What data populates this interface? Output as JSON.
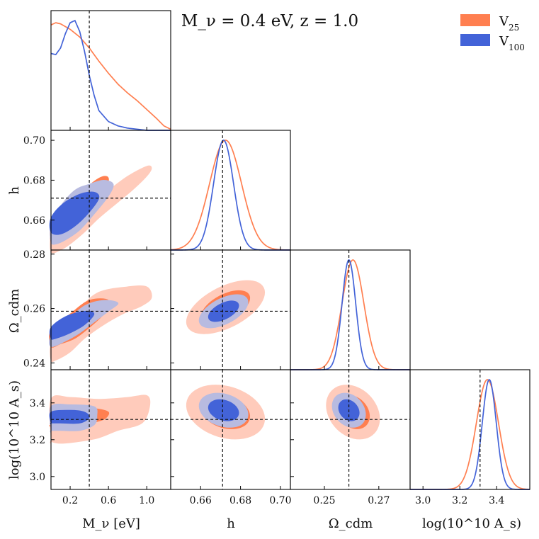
{
  "chart_data": {
    "type": "corner",
    "title": "M_ν = 0.4 eV,  z = 1.0",
    "colors": {
      "V25": "#ff7f50",
      "V25_light": "#ffcbbb",
      "V100": "#4363d8",
      "V100_light": "#b8bbe0",
      "truth": "#111111"
    },
    "legend": {
      "placement": "top-right",
      "entries": [
        {
          "key": "V25",
          "label": "V",
          "sub": "25"
        },
        {
          "key": "V100",
          "label": "V",
          "sub": "100"
        }
      ]
    },
    "parameters": [
      {
        "key": "Mnu",
        "label": "M_ν [eV]",
        "range": [
          0.0,
          1.25
        ],
        "ticks": [
          0.2,
          0.6,
          1.0
        ],
        "tick_labels": [
          "0.2",
          "0.6",
          "1.0"
        ],
        "truth": 0.4
      },
      {
        "key": "h",
        "label": "h",
        "range": [
          0.645,
          0.705
        ],
        "ticks": [
          0.66,
          0.68,
          0.7
        ],
        "tick_labels": [
          "0.66",
          "0.68",
          "0.70"
        ],
        "truth": 0.671
      },
      {
        "key": "Ocdm",
        "label": "Ω_cdm",
        "range": [
          0.2375,
          0.2815
        ],
        "ticks": [
          0.24,
          0.26,
          0.28
        ],
        "tick_labels": [
          "0.24",
          "0.26",
          "0.28"
        ],
        "ticks_x": [
          0.25,
          0.27
        ],
        "tick_labels_x": [
          "0.25",
          "0.27"
        ],
        "truth": 0.259
      },
      {
        "key": "As",
        "label": "log(10^10 A_s)",
        "range": [
          2.93,
          3.58
        ],
        "ticks": [
          3.0,
          3.2,
          3.4
        ],
        "tick_labels": [
          "3.0",
          "3.2",
          "3.4"
        ],
        "ticks_x": [
          3.0,
          3.2,
          3.4
        ],
        "tick_labels_x": [
          "3.0",
          "3.2",
          "3.4"
        ],
        "truth": 3.31
      }
    ],
    "marginals": {
      "Mnu": {
        "V25": [
          [
            0.0,
            0.96
          ],
          [
            0.05,
            0.98
          ],
          [
            0.1,
            0.97
          ],
          [
            0.2,
            0.92
          ],
          [
            0.3,
            0.85
          ],
          [
            0.4,
            0.75
          ],
          [
            0.5,
            0.63
          ],
          [
            0.6,
            0.52
          ],
          [
            0.7,
            0.42
          ],
          [
            0.8,
            0.34
          ],
          [
            0.9,
            0.27
          ],
          [
            1.0,
            0.19
          ],
          [
            1.1,
            0.11
          ],
          [
            1.18,
            0.04
          ],
          [
            1.25,
            0.01
          ]
        ],
        "V100": [
          [
            0.0,
            0.7
          ],
          [
            0.05,
            0.69
          ],
          [
            0.1,
            0.75
          ],
          [
            0.15,
            0.88
          ],
          [
            0.2,
            0.98
          ],
          [
            0.25,
            1.0
          ],
          [
            0.3,
            0.9
          ],
          [
            0.35,
            0.72
          ],
          [
            0.4,
            0.5
          ],
          [
            0.45,
            0.32
          ],
          [
            0.5,
            0.18
          ],
          [
            0.6,
            0.08
          ],
          [
            0.7,
            0.04
          ],
          [
            0.8,
            0.02
          ],
          [
            0.9,
            0.01
          ],
          [
            1.0,
            0.0
          ],
          [
            1.25,
            0.0
          ]
        ]
      },
      "h": {
        "V25": {
          "mean": 0.6725,
          "sigma": 0.008
        },
        "V100": {
          "mean": 0.6715,
          "sigma": 0.005
        }
      },
      "Ocdm": {
        "V25": {
          "mean": 0.2605,
          "sigma": 0.004
        },
        "V100": {
          "mean": 0.259,
          "sigma": 0.0025
        }
      },
      "As": {
        "V25": {
          "mean": 3.35,
          "sigma": 0.06
        },
        "V100": {
          "mean": 3.36,
          "sigma": 0.038
        }
      }
    },
    "contours": {
      "Mnu-h": {
        "V25": {
          "outer": [
            [
              0.0,
              0.653
            ],
            [
              0.05,
              0.654
            ],
            [
              0.2,
              0.662
            ],
            [
              0.4,
              0.669
            ],
            [
              0.6,
              0.675
            ],
            [
              0.8,
              0.682
            ],
            [
              1.0,
              0.687
            ],
            [
              1.05,
              0.686
            ],
            [
              1.0,
              0.682
            ],
            [
              0.85,
              0.675
            ],
            [
              0.7,
              0.669
            ],
            [
              0.5,
              0.661
            ],
            [
              0.35,
              0.654
            ],
            [
              0.2,
              0.648
            ],
            [
              0.1,
              0.645
            ],
            [
              0.0,
              0.644
            ]
          ],
          "inner": [
            [
              0.0,
              0.657
            ],
            [
              0.1,
              0.662
            ],
            [
              0.3,
              0.673
            ],
            [
              0.5,
              0.681
            ],
            [
              0.6,
              0.681
            ],
            [
              0.55,
              0.673
            ],
            [
              0.4,
              0.664
            ],
            [
              0.2,
              0.655
            ],
            [
              0.05,
              0.65
            ],
            [
              0.0,
              0.649
            ]
          ]
        },
        "V100": {
          "outer": [
            [
              0.0,
              0.658
            ],
            [
              0.1,
              0.667
            ],
            [
              0.25,
              0.675
            ],
            [
              0.4,
              0.678
            ],
            [
              0.55,
              0.68
            ],
            [
              0.65,
              0.678
            ],
            [
              0.6,
              0.672
            ],
            [
              0.45,
              0.663
            ],
            [
              0.3,
              0.655
            ],
            [
              0.15,
              0.65
            ],
            [
              0.05,
              0.648
            ],
            [
              0.0,
              0.649
            ]
          ],
          "inner": [
            [
              0.0,
              0.661
            ],
            [
              0.12,
              0.668
            ],
            [
              0.3,
              0.673
            ],
            [
              0.45,
              0.674
            ],
            [
              0.5,
              0.671
            ],
            [
              0.4,
              0.664
            ],
            [
              0.25,
              0.657
            ],
            [
              0.1,
              0.653
            ],
            [
              0.0,
              0.654
            ]
          ]
        }
      },
      "Mnu-Ocdm": {
        "V25": {
          "outer": [
            [
              0.0,
              0.247
            ],
            [
              0.1,
              0.251
            ],
            [
              0.3,
              0.26
            ],
            [
              0.5,
              0.266
            ],
            [
              0.8,
              0.268
            ],
            [
              1.0,
              0.268
            ],
            [
              1.05,
              0.264
            ],
            [
              0.95,
              0.261
            ],
            [
              0.75,
              0.258
            ],
            [
              0.55,
              0.254
            ],
            [
              0.35,
              0.249
            ],
            [
              0.2,
              0.244
            ],
            [
              0.05,
              0.241
            ],
            [
              0.0,
              0.241
            ]
          ],
          "inner": [
            [
              0.0,
              0.252
            ],
            [
              0.2,
              0.258
            ],
            [
              0.4,
              0.263
            ],
            [
              0.6,
              0.263
            ],
            [
              0.55,
              0.258
            ],
            [
              0.4,
              0.253
            ],
            [
              0.25,
              0.249
            ],
            [
              0.1,
              0.247
            ],
            [
              0.0,
              0.246
            ]
          ]
        },
        "V100": {
          "outer": [
            [
              0.0,
              0.25
            ],
            [
              0.15,
              0.255
            ],
            [
              0.35,
              0.261
            ],
            [
              0.55,
              0.263
            ],
            [
              0.7,
              0.262
            ],
            [
              0.6,
              0.259
            ],
            [
              0.45,
              0.255
            ],
            [
              0.3,
              0.251
            ],
            [
              0.15,
              0.248
            ],
            [
              0.0,
              0.246
            ]
          ],
          "inner": [
            [
              0.0,
              0.253
            ],
            [
              0.15,
              0.257
            ],
            [
              0.35,
              0.259
            ],
            [
              0.45,
              0.258
            ],
            [
              0.35,
              0.254
            ],
            [
              0.2,
              0.251
            ],
            [
              0.05,
              0.249
            ],
            [
              0.0,
              0.249
            ]
          ]
        }
      },
      "Mnu-As": {
        "V25": {
          "outer": [
            [
              0.0,
              3.2
            ],
            [
              0.0,
              3.42
            ],
            [
              0.2,
              3.43
            ],
            [
              0.5,
              3.42
            ],
            [
              0.8,
              3.43
            ],
            [
              1.0,
              3.44
            ],
            [
              1.03,
              3.38
            ],
            [
              0.95,
              3.29
            ],
            [
              0.7,
              3.25
            ],
            [
              0.5,
              3.21
            ],
            [
              0.3,
              3.19
            ],
            [
              0.1,
              3.18
            ],
            [
              0.0,
              3.19
            ]
          ],
          "inner": [
            [
              0.0,
              3.28
            ],
            [
              0.0,
              3.38
            ],
            [
              0.2,
              3.38
            ],
            [
              0.45,
              3.37
            ],
            [
              0.6,
              3.35
            ],
            [
              0.55,
              3.31
            ],
            [
              0.4,
              3.29
            ],
            [
              0.2,
              3.28
            ],
            [
              0.0,
              3.28
            ]
          ]
        },
        "V100": {
          "outer": [
            [
              0.0,
              3.25
            ],
            [
              0.0,
              3.38
            ],
            [
              0.2,
              3.39
            ],
            [
              0.45,
              3.38
            ],
            [
              0.48,
              3.33
            ],
            [
              0.45,
              3.28
            ],
            [
              0.3,
              3.25
            ],
            [
              0.1,
              3.25
            ],
            [
              0.0,
              3.25
            ]
          ],
          "inner": [
            [
              0.0,
              3.29
            ],
            [
              0.0,
              3.35
            ],
            [
              0.2,
              3.36
            ],
            [
              0.35,
              3.35
            ],
            [
              0.4,
              3.32
            ],
            [
              0.3,
              3.29
            ],
            [
              0.1,
              3.29
            ],
            [
              0.0,
              3.29
            ]
          ]
        }
      },
      "h-Ocdm": {
        "V25": {
          "mean": [
            0.6725,
            0.2605
          ],
          "sigma": [
            0.008,
            0.004
          ],
          "rho": 0.55
        },
        "V100": {
          "mean": [
            0.6715,
            0.259
          ],
          "sigma": [
            0.005,
            0.0025
          ],
          "rho": 0.55
        }
      },
      "h-As": {
        "V25": {
          "mean": [
            0.6725,
            3.35
          ],
          "sigma": [
            0.008,
            0.06
          ],
          "rho": -0.25
        },
        "V100": {
          "mean": [
            0.6715,
            3.36
          ],
          "sigma": [
            0.005,
            0.038
          ],
          "rho": -0.25
        }
      },
      "Ocdm-As": {
        "V25": {
          "mean": [
            0.2605,
            3.35
          ],
          "sigma": [
            0.004,
            0.06
          ],
          "rho": -0.25
        },
        "V100": {
          "mean": [
            0.259,
            3.36
          ],
          "sigma": [
            0.0025,
            0.038
          ],
          "rho": -0.25
        }
      }
    }
  }
}
